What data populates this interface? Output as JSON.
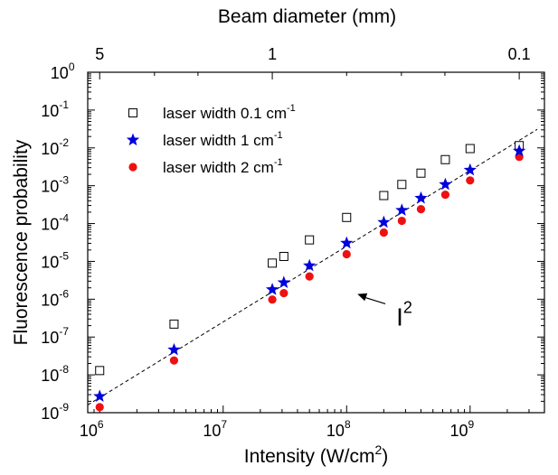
{
  "chart_data": {
    "type": "scatter",
    "xlabel": {
      "main": "Intensity (W/cm",
      "sup": "2",
      "close": ")"
    },
    "ylabel": "Fluorescence probability",
    "top_axis_label": "Beam diameter (mm)",
    "x_scale": "log",
    "y_scale": "log",
    "xlim": [
      800000,
      4000000000
    ],
    "ylim": [
      1e-09,
      1
    ],
    "x_ticks": [
      {
        "value": 1000000,
        "base": "10",
        "exp": "6"
      },
      {
        "value": 10000000,
        "base": "10",
        "exp": "7"
      },
      {
        "value": 100000000,
        "base": "10",
        "exp": "8"
      },
      {
        "value": 1000000000,
        "base": "10",
        "exp": "9"
      }
    ],
    "y_ticks": [
      {
        "value": 1,
        "base": "10",
        "exp": "0"
      },
      {
        "value": 0.1,
        "base": "10",
        "exp": "-1"
      },
      {
        "value": 0.01,
        "base": "10",
        "exp": "-2"
      },
      {
        "value": 0.001,
        "base": "10",
        "exp": "-3"
      },
      {
        "value": 0.0001,
        "base": "10",
        "exp": "-4"
      },
      {
        "value": 1e-05,
        "base": "10",
        "exp": "-5"
      },
      {
        "value": 1e-06,
        "base": "10",
        "exp": "-6"
      },
      {
        "value": 1e-07,
        "base": "10",
        "exp": "-7"
      },
      {
        "value": 1e-08,
        "base": "10",
        "exp": "-8"
      },
      {
        "value": 1e-09,
        "base": "10",
        "exp": "-9"
      }
    ],
    "top_ticks": [
      {
        "label": "5",
        "intensity": 1000000
      },
      {
        "label": "1",
        "intensity": 25000000
      },
      {
        "label": "0.1",
        "intensity": 2500000000
      }
    ],
    "series": [
      {
        "name": {
          "main": "laser width 0.1 cm",
          "sup": "-1"
        },
        "marker": "open-square",
        "color": "#000000",
        "x": [
          1000000,
          4000000,
          25000000,
          31000000,
          50000000,
          100000000,
          200000000,
          280000000,
          400000000,
          630000000,
          1000000000,
          2500000000
        ],
        "y": [
          1.3e-08,
          2.2e-07,
          9e-06,
          1.35e-05,
          3.7e-05,
          0.000145,
          0.00055,
          0.00108,
          0.00215,
          0.0049,
          0.0096,
          0.0115
        ]
      },
      {
        "name": {
          "main": "laser width   1 cm",
          "sup": "-1"
        },
        "marker": "star",
        "color": "#0000dd",
        "x": [
          1000000,
          4000000,
          25000000,
          31000000,
          50000000,
          100000000,
          200000000,
          280000000,
          400000000,
          630000000,
          1000000000,
          2500000000
        ],
        "y": [
          2.7e-09,
          4.6e-08,
          1.8e-06,
          2.75e-06,
          7.7e-06,
          3.05e-05,
          0.000108,
          0.000225,
          0.00047,
          0.00108,
          0.0026,
          0.0083
        ]
      },
      {
        "name": {
          "main": "laser width   2 cm",
          "sup": "-1"
        },
        "marker": "filled-circle",
        "color": "#ee1111",
        "x": [
          1000000,
          4000000,
          25000000,
          31000000,
          50000000,
          100000000,
          200000000,
          280000000,
          400000000,
          630000000,
          1000000000,
          2500000000
        ],
        "y": [
          1.4e-09,
          2.4e-08,
          9.8e-07,
          1.45e-06,
          4e-06,
          1.55e-05,
          5.8e-05,
          0.000118,
          0.00024,
          0.00058,
          0.00138,
          0.0058
        ]
      }
    ],
    "fit_line": {
      "style": "dashed",
      "points": [
        [
          800000,
          1.6e-09
        ],
        [
          3500000000,
          0.031
        ]
      ]
    },
    "annotation": {
      "text": {
        "main": "I",
        "sup": "2"
      },
      "arrow_from": [
        180000000,
        3.5e-07
      ],
      "arrow_to": [
        100000000,
        1.7e-06
      ]
    },
    "legend": {
      "placement": "top-left"
    },
    "grid": false
  }
}
